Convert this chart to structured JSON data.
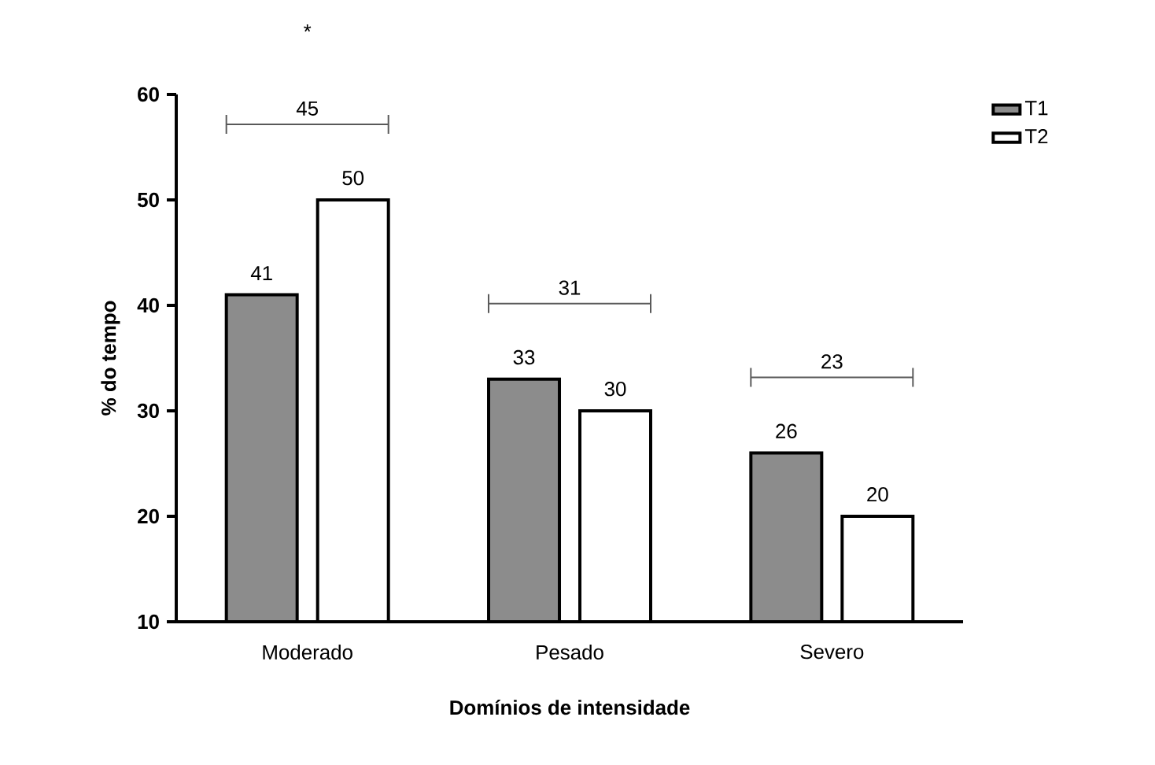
{
  "chart_data": {
    "type": "bar",
    "xlabel": "Domínios de intensidade",
    "ylabel": "% do tempo",
    "categories": [
      "Moderado",
      "Pesado",
      "Severo"
    ],
    "series": [
      {
        "name": "T1",
        "color": "#8c8c8c",
        "values": [
          41,
          33,
          26
        ]
      },
      {
        "name": "T2",
        "color": "#ffffff",
        "values": [
          50,
          30,
          20
        ]
      }
    ],
    "ylim": [
      10,
      60
    ],
    "yticks": [
      10,
      20,
      30,
      40,
      50,
      60
    ],
    "data_labels": true,
    "legend": "top right",
    "annotations": [
      "45",
      "31",
      "23",
      "*"
    ]
  }
}
